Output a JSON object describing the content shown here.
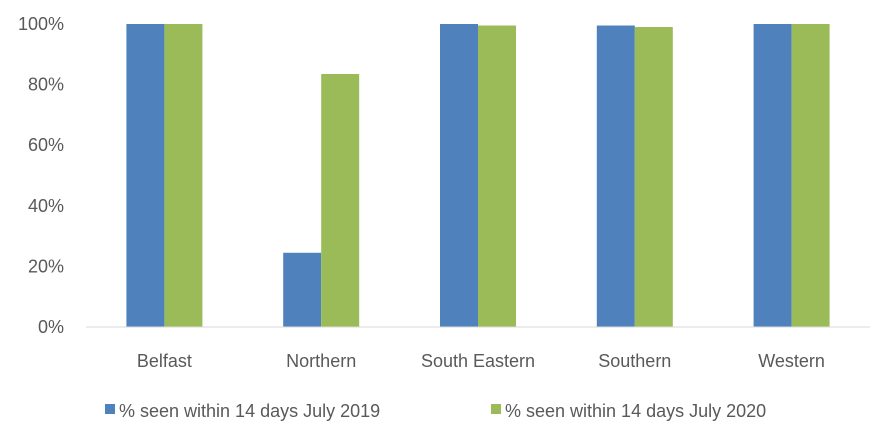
{
  "chart_data": {
    "type": "bar",
    "categories": [
      "Belfast",
      "Northern",
      "South Eastern",
      "Southern",
      "Western"
    ],
    "series": [
      {
        "name": "% seen within 14 days July 2019",
        "values": [
          100,
          24.5,
          100,
          99.5,
          100
        ],
        "color": "#4F81BD"
      },
      {
        "name": "% seen within 14 days July 2020",
        "values": [
          100,
          83.5,
          99.5,
          99,
          100
        ],
        "color": "#9BBB59"
      }
    ],
    "ylim": [
      0,
      100
    ],
    "yticks": [
      "0%",
      "20%",
      "40%",
      "60%",
      "80%",
      "100%"
    ],
    "ytick_values": [
      0,
      20,
      40,
      60,
      80,
      100
    ],
    "grid": false,
    "legend": "bottom"
  }
}
